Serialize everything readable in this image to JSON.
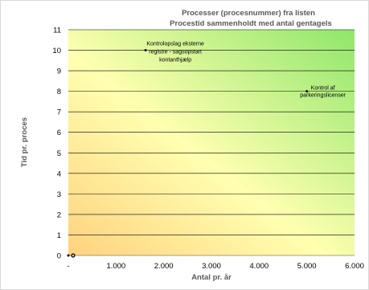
{
  "chart_data": {
    "type": "scatter",
    "title": "Processer (procesnummer) fra listen",
    "subtitle": "Procestid sammenholdt med antal gentagels",
    "xlabel": "Antal pr. år",
    "ylabel": "Tid pr. proces",
    "xlim": [
      0,
      6000
    ],
    "ylim": [
      0,
      11
    ],
    "x_tick_labels": [
      "-",
      "1.000",
      "2.000",
      "3.000",
      "4.000",
      "5.000",
      "6.000"
    ],
    "y_tick_labels": [
      "0",
      "1",
      "2",
      "3",
      "4",
      "5",
      "6",
      "7",
      "8",
      "9",
      "10",
      "11"
    ],
    "grid": "horizontal",
    "background": "diagonal gradient from orange (bottom-left) through yellow to green (top-right)",
    "colors": {
      "bg_low": "#ffd27f",
      "bg_mid": "#ffffb0",
      "bg_high": "#8fe66a",
      "point": "#000000"
    },
    "points": [
      {
        "x": 1620,
        "y": 10,
        "label": [
          "Kontrolopslag eksterne",
          "registre - sagsopstart",
          "kontanthjælp"
        ]
      },
      {
        "x": 5000,
        "y": 8,
        "label": [
          "Kontrol af",
          "parkeringslicenser"
        ]
      },
      {
        "x": 0,
        "y": 0
      },
      {
        "x": 100,
        "y": 0
      }
    ]
  }
}
